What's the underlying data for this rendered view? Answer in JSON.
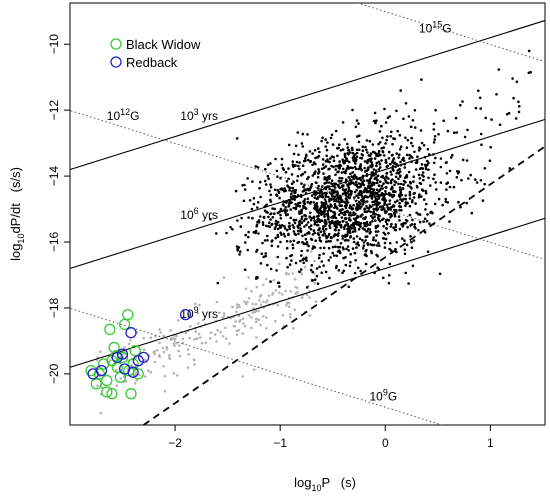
{
  "chart_data": {
    "type": "scatter",
    "title": "",
    "xlabel": {
      "pre": "log",
      "sub": "10",
      "post": "P   (s)"
    },
    "ylabel": {
      "pre": "log",
      "sub": "10",
      "post": "dP/dt   (s/s)"
    },
    "xlim": [
      -3.0,
      1.52
    ],
    "ylim": [
      -21.55,
      -8.75
    ],
    "xticks": [
      -2,
      -1,
      0,
      1
    ],
    "yticks": [
      -20,
      -18,
      -16,
      -14,
      -12,
      -10
    ],
    "legend": {
      "position": "top-left",
      "entries": [
        {
          "label": "Black Widow",
          "color": "#33cc33"
        },
        {
          "label": "Redback",
          "color": "#2222cc"
        }
      ]
    },
    "colors": {
      "pulsars": "#000000",
      "msp_background": "#b4b4b4",
      "black_widow": "#33cc33",
      "redback": "#2222cc"
    },
    "age_lines": [
      {
        "log_age_yr": 3,
        "label_base": "10",
        "label_exp": "3",
        "label_unit": " yrs",
        "label_pos": [
          -1.95,
          -12.3
        ]
      },
      {
        "log_age_yr": 6,
        "label_base": "10",
        "label_exp": "6",
        "label_unit": " yrs",
        "label_pos": [
          -1.95,
          -15.3
        ]
      },
      {
        "log_age_yr": 9,
        "label_base": "10",
        "label_exp": "9",
        "label_unit": " yrs",
        "label_pos": [
          -1.95,
          -18.3
        ]
      }
    ],
    "field_lines": [
      {
        "log_B": 12,
        "label_base": "10",
        "label_exp": "12",
        "label_unit": "G",
        "label_pos": [
          -2.65,
          -12.3
        ]
      },
      {
        "log_B": 9,
        "label_base": "10",
        "label_exp": "9",
        "label_unit": "G",
        "label_pos": [
          -0.15,
          -20.8
        ]
      },
      {
        "log_B": 15,
        "label_base": "10",
        "label_exp": "15",
        "label_unit": "G",
        "label_pos": [
          0.32,
          -9.65
        ]
      }
    ],
    "death_line": {
      "x": [
        -2.3,
        1.52
      ],
      "y": [
        -21.55,
        -13.1
      ]
    },
    "black_widows": [
      [
        -2.8,
        -19.9
      ],
      [
        -2.75,
        -20.3
      ],
      [
        -2.72,
        -20.0
      ],
      [
        -2.68,
        -19.7
      ],
      [
        -2.65,
        -20.2
      ],
      [
        -2.6,
        -19.6
      ],
      [
        -2.62,
        -18.65
      ],
      [
        -2.58,
        -19.2
      ],
      [
        -2.55,
        -19.8
      ],
      [
        -2.52,
        -20.1
      ],
      [
        -2.5,
        -19.5
      ],
      [
        -2.48,
        -18.5
      ],
      [
        -2.45,
        -18.2
      ],
      [
        -2.44,
        -19.9
      ],
      [
        -2.42,
        -20.6
      ],
      [
        -2.38,
        -19.3
      ],
      [
        -2.35,
        -20.0
      ],
      [
        -2.6,
        -20.6
      ],
      [
        -2.65,
        -20.55
      ],
      [
        -2.56,
        -19.45
      ],
      [
        -2.4,
        -19.7
      ]
    ],
    "redbacks": [
      [
        -2.78,
        -20.0
      ],
      [
        -2.7,
        -19.9
      ],
      [
        -2.55,
        -19.5
      ],
      [
        -2.5,
        -19.4
      ],
      [
        -2.42,
        -18.75
      ],
      [
        -2.35,
        -19.6
      ],
      [
        -2.3,
        -19.5
      ],
      [
        -2.4,
        -19.95
      ],
      [
        -2.48,
        -19.85
      ],
      [
        -1.9,
        -18.2
      ]
    ]
  }
}
